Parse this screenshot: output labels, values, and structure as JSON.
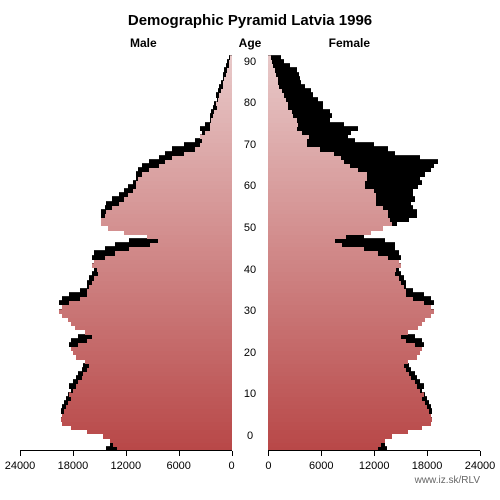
{
  "title": "Demographic Pyramid Latvia 1996",
  "title_fontsize": 15,
  "label_male": "Male",
  "label_female": "Female",
  "label_age": "Age",
  "label_fontsize": 12,
  "credit": "www.iz.sk/RLV",
  "background_color": "#ffffff",
  "black_color": "#000000",
  "top_color": "#e8c8c8",
  "bottom_color": "#b84848",
  "axis": {
    "x_max": 24000,
    "x_ticks": [
      0,
      6000,
      12000,
      18000,
      24000
    ],
    "y_ticks": [
      0,
      10,
      20,
      30,
      40,
      50,
      60,
      70,
      80,
      90
    ],
    "age_min": 0,
    "age_max": 94
  },
  "male": {
    "black": [
      14200,
      13800,
      13400,
      13200,
      13600,
      14600,
      16400,
      18200,
      19200,
      19400,
      19200,
      19000,
      18800,
      18600,
      18200,
      18400,
      18000,
      17600,
      17400,
      17000,
      16800,
      16400,
      16200,
      16600,
      17600,
      18400,
      18200,
      17400,
      16400,
      15800,
      16600,
      17800,
      18200,
      18600,
      19200,
      19600,
      19200,
      18400,
      17200,
      16400,
      16400,
      16200,
      15800,
      15600,
      15200,
      15300,
      15800,
      15600,
      14400,
      13200,
      11600,
      9200,
      8400,
      9600,
      12200,
      14000,
      14800,
      14800,
      14400,
      14200,
      13600,
      12800,
      12200,
      11800,
      11200,
      10800,
      10800,
      10600,
      10200,
      9400,
      8200,
      7600,
      6800,
      5400,
      4200,
      3600,
      3400,
      3600,
      3000,
      2400,
      2400,
      2300,
      2100,
      2000,
      1700,
      1800,
      1600,
      1400,
      1200,
      1000,
      1000,
      900,
      600,
      500,
      350
    ],
    "color": [
      13000,
      13400,
      13800,
      14600,
      16400,
      18200,
      19200,
      19400,
      19200,
      19000,
      18800,
      18600,
      18200,
      18400,
      18000,
      17600,
      17400,
      17000,
      16800,
      16400,
      16200,
      16600,
      17600,
      18000,
      18200,
      17400,
      16400,
      15800,
      16600,
      17800,
      18200,
      18600,
      19200,
      19600,
      19200,
      18400,
      17200,
      16400,
      16400,
      16200,
      15800,
      15600,
      15200,
      15300,
      15800,
      15600,
      14400,
      13200,
      11600,
      9200,
      8400,
      9600,
      12200,
      14000,
      14800,
      14800,
      14400,
      14200,
      13600,
      12800,
      12200,
      11800,
      11200,
      10800,
      10800,
      10600,
      10200,
      9400,
      8200,
      7600,
      6800,
      5400,
      4200,
      3600,
      3400,
      3600,
      3000,
      2400,
      2400,
      2300,
      2100,
      2000,
      1700,
      1800,
      1600,
      1400,
      1200,
      1000,
      1000,
      900,
      600,
      500,
      350,
      250,
      200
    ]
  },
  "female": {
    "black": [
      13500,
      13200,
      12800,
      12600,
      13000,
      14000,
      15800,
      17400,
      18400,
      18600,
      18400,
      18200,
      18000,
      17800,
      17400,
      17600,
      17200,
      16800,
      16600,
      16200,
      16000,
      15600,
      15400,
      15800,
      16800,
      17600,
      17400,
      16600,
      15600,
      15000,
      15800,
      17000,
      17400,
      17800,
      18400,
      18800,
      18400,
      17600,
      16400,
      15600,
      15600,
      15400,
      15000,
      14800,
      14400,
      14500,
      15000,
      14800,
      14400,
      14400,
      13200,
      10800,
      9800,
      11600,
      14600,
      16000,
      16800,
      16800,
      16400,
      16200,
      16600,
      16400,
      16400,
      17000,
      17400,
      17200,
      17800,
      18400,
      18800,
      19200,
      17200,
      14400,
      13600,
      12000,
      9800,
      9000,
      9400,
      10200,
      8600,
      7000,
      7200,
      7000,
      6200,
      6200,
      5600,
      5100,
      4800,
      4100,
      3700,
      3600,
      3500,
      3200,
      2400,
      1800,
      1400
    ],
    "color": [
      12400,
      12800,
      13200,
      14000,
      15800,
      17400,
      18400,
      18600,
      18400,
      18200,
      18000,
      17800,
      17400,
      17600,
      17200,
      16800,
      16600,
      16200,
      16000,
      15600,
      15400,
      15800,
      16800,
      17200,
      17400,
      16600,
      15600,
      15000,
      15800,
      17000,
      17400,
      17800,
      18400,
      18800,
      18400,
      17600,
      16400,
      15600,
      15600,
      15400,
      15000,
      14800,
      14400,
      14500,
      15000,
      14800,
      13600,
      12400,
      10800,
      8400,
      7600,
      8800,
      11600,
      13000,
      14000,
      13800,
      13600,
      13600,
      13000,
      12200,
      12200,
      12200,
      12000,
      11000,
      11000,
      11200,
      11200,
      10200,
      9200,
      8600,
      8200,
      7400,
      5800,
      4400,
      4400,
      4600,
      3800,
      3200,
      3300,
      3200,
      2800,
      2700,
      2200,
      2200,
      2000,
      1800,
      1500,
      1200,
      1100,
      1100,
      900,
      700,
      500,
      400,
      300
    ]
  }
}
